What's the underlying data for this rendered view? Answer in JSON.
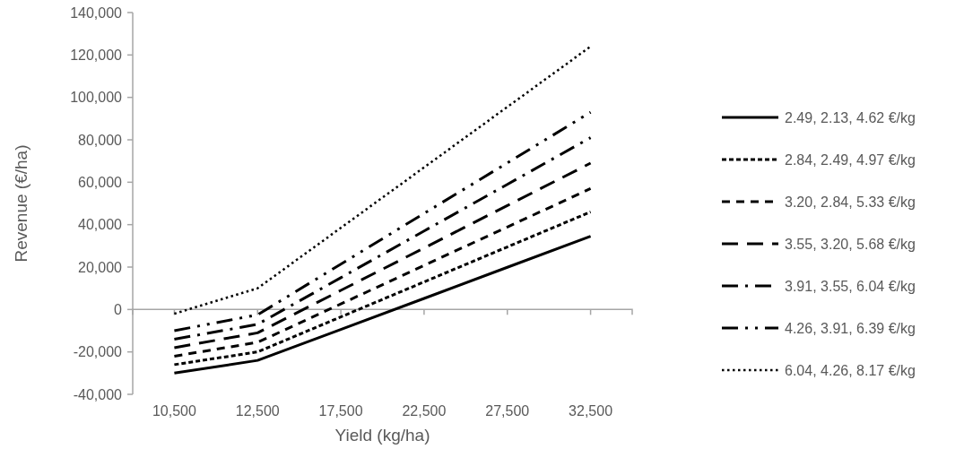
{
  "chart_data": {
    "type": "line",
    "xlabel": "Yield (kg/ha)",
    "ylabel": "Revenue (€/ha)",
    "categories": [
      "10,500",
      "12,500",
      "17,500",
      "22,500",
      "27,500",
      "32,500"
    ],
    "ylim": [
      -40000,
      140000
    ],
    "yticks": [
      {
        "value": -40000,
        "label": "-40,000"
      },
      {
        "value": -20000,
        "label": "-20,000"
      },
      {
        "value": 0,
        "label": "0"
      },
      {
        "value": 20000,
        "label": "20,000"
      },
      {
        "value": 40000,
        "label": "40,000"
      },
      {
        "value": 60000,
        "label": "60,000"
      },
      {
        "value": 80000,
        "label": "80,000"
      },
      {
        "value": 100000,
        "label": "100,000"
      },
      {
        "value": 120000,
        "label": "120,000"
      },
      {
        "value": 140000,
        "label": "140,000"
      }
    ],
    "grid": false,
    "legend": "right",
    "marker": "none",
    "series": [
      {
        "name": "2.49, 2.13, 4.62 €/kg",
        "color": "#000000",
        "line_style": "solid",
        "values": [
          -30000,
          -24000,
          -9400,
          5200,
          19900,
          34500
        ]
      },
      {
        "name": "2.84, 2.49, 4.97 €/kg",
        "color": "#000000",
        "line_style": "dotted",
        "values": [
          -26000,
          -20000,
          -3500,
          13000,
          29500,
          46000
        ]
      },
      {
        "name": "3.20, 2.84, 5.33 €/kg",
        "color": "#000000",
        "line_style": "dashed",
        "values": [
          -22000,
          -15500,
          2600,
          20800,
          38900,
          57000
        ]
      },
      {
        "name": "3.55, 3.20, 5.68 €/kg",
        "color": "#000000",
        "line_style": "longdash",
        "values": [
          -18000,
          -11000,
          9000,
          29000,
          49000,
          69000
        ]
      },
      {
        "name": "3.91, 3.55, 6.04 €/kg",
        "color": "#000000",
        "line_style": "dashdot",
        "values": [
          -14000,
          -7000,
          15000,
          37000,
          59000,
          81000
        ]
      },
      {
        "name": "4.26, 3.91, 6.39 €/kg",
        "color": "#000000",
        "line_style": "dashdotdot",
        "values": [
          -10000,
          -2500,
          21400,
          45300,
          69100,
          93000
        ]
      },
      {
        "name": "6.04, 4.26, 8.17 €/kg",
        "color": "#000000",
        "line_style": "finedot",
        "values": [
          -2000,
          10000,
          38500,
          67000,
          95500,
          124000
        ]
      }
    ]
  }
}
